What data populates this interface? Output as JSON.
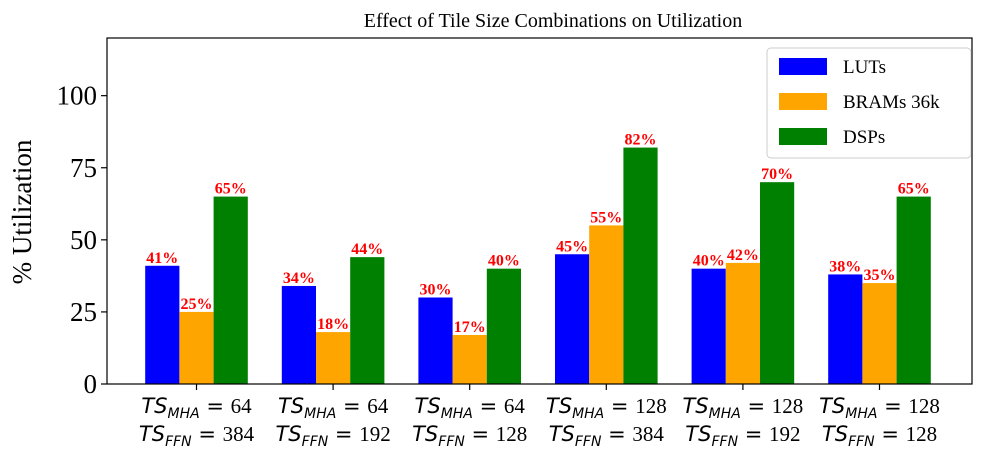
{
  "chart_data": {
    "type": "bar",
    "title": "Effect of Tile Size Combinations on Utilization",
    "xlabel": "",
    "ylabel": "% Utilization",
    "ylim": [
      0,
      120
    ],
    "yticks": [
      0,
      25,
      50,
      75,
      100
    ],
    "legend_position": "top-right",
    "categories": [
      {
        "mha_label": "TS",
        "mha_sub": "MHA",
        "mha_value": "64",
        "ffn_label": "TS",
        "ffn_sub": "FFN",
        "ffn_value": "384"
      },
      {
        "mha_label": "TS",
        "mha_sub": "MHA",
        "mha_value": "64",
        "ffn_label": "TS",
        "ffn_sub": "FFN",
        "ffn_value": "192"
      },
      {
        "mha_label": "TS",
        "mha_sub": "MHA",
        "mha_value": "64",
        "ffn_label": "TS",
        "ffn_sub": "FFN",
        "ffn_value": "128"
      },
      {
        "mha_label": "TS",
        "mha_sub": "MHA",
        "mha_value": "128",
        "ffn_label": "TS",
        "ffn_sub": "FFN",
        "ffn_value": "384"
      },
      {
        "mha_label": "TS",
        "mha_sub": "MHA",
        "mha_value": "128",
        "ffn_label": "TS",
        "ffn_sub": "FFN",
        "ffn_value": "192"
      },
      {
        "mha_label": "TS",
        "mha_sub": "MHA",
        "mha_value": "128",
        "ffn_label": "TS",
        "ffn_sub": "FFN",
        "ffn_value": "128"
      }
    ],
    "series": [
      {
        "name": "LUTs",
        "color": "#0000ff",
        "values": [
          41,
          34,
          30,
          45,
          40,
          38
        ],
        "labels": [
          "41%",
          "34%",
          "30%",
          "45%",
          "40%",
          "38%"
        ]
      },
      {
        "name": "BRAMs 36k",
        "color": "#ffa500",
        "values": [
          25,
          18,
          17,
          55,
          42,
          35
        ],
        "labels": [
          "25%",
          "18%",
          "17%",
          "55%",
          "42%",
          "35%"
        ]
      },
      {
        "name": "DSPs",
        "color": "#008000",
        "values": [
          65,
          44,
          40,
          82,
          70,
          65
        ],
        "labels": [
          "65%",
          "44%",
          "40%",
          "82%",
          "70%",
          "65%"
        ]
      }
    ],
    "data_label_color": "#ff0000"
  }
}
